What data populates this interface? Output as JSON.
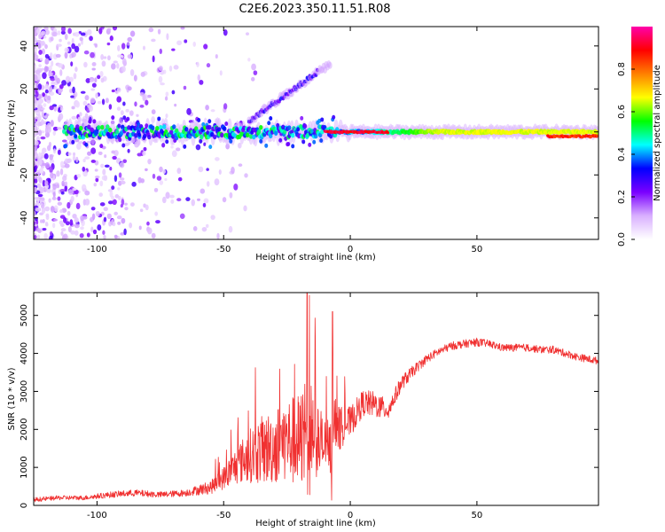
{
  "chart_data": [
    {
      "type": "heatmap",
      "title": "C2E6.2023.350.11.51.R08",
      "xlabel": "Height of straight line (km)",
      "ylabel": "Frequency (Hz)",
      "xlim": [
        -125,
        98
      ],
      "ylim": [
        -50,
        49
      ],
      "x_ticks": [
        -100,
        -50,
        0,
        50
      ],
      "x_tick_labels": [
        "-100",
        "-50",
        "0",
        "50"
      ],
      "y_ticks": [
        40,
        20,
        0,
        -20,
        -40
      ],
      "y_tick_labels": [
        "40",
        "20",
        "0",
        "-20",
        "-40"
      ],
      "colorbar": {
        "label": "Normalized spectral amplitude",
        "range": [
          0,
          1
        ],
        "ticks": [
          0.0,
          0.2,
          0.4,
          0.6,
          0.8
        ],
        "tick_labels": [
          "0.0",
          "0.2",
          "0.4",
          "0.6",
          "0.8"
        ],
        "colormap_stops": [
          "#ffffff",
          "#d9b0ff",
          "#7a00ff",
          "#0000ff",
          "#00ffff",
          "#00ff00",
          "#ffff00",
          "#ff8000",
          "#ff0000",
          "#ff00aa"
        ]
      },
      "features": [
        {
          "name": "main-band",
          "freq_hz": 0,
          "x_range": [
            -113,
            98
          ],
          "amplitude": 0.55
        },
        {
          "name": "upper-branch",
          "freq_start_hz": 5,
          "freq_end_hz": 32,
          "x_range": [
            -40,
            -8
          ],
          "amplitude": 0.3
        },
        {
          "name": "peak-segment",
          "freq_hz": 0,
          "x_range": [
            -10,
            15
          ],
          "amplitude": 0.95
        },
        {
          "name": "tail-segment",
          "freq_hz": -2,
          "x_range": [
            78,
            98
          ],
          "amplitude": 0.9
        }
      ]
    },
    {
      "type": "line",
      "xlabel": "Height of straight line (km)",
      "ylabel": "SNR (10 * v/v)",
      "xlim": [
        -125,
        98
      ],
      "ylim": [
        0,
        5600
      ],
      "x_ticks": [
        -100,
        -50,
        0,
        50
      ],
      "x_tick_labels": [
        "-100",
        "-50",
        "0",
        "50"
      ],
      "y_ticks": [
        0,
        1000,
        2000,
        3000,
        4000,
        5000
      ],
      "y_tick_labels": [
        "0",
        "1000",
        "2000",
        "3000",
        "4000",
        "5000"
      ],
      "series": [
        {
          "name": "SNR",
          "color": "#f03030",
          "x": [
            -125,
            -115,
            -105,
            -95,
            -85,
            -75,
            -65,
            -55,
            -50,
            -45,
            -40,
            -35,
            -30,
            -25,
            -20,
            -17,
            -15,
            -10,
            -7,
            -5,
            0,
            5,
            10,
            15,
            20,
            25,
            30,
            35,
            40,
            45,
            50,
            55,
            60,
            65,
            70,
            75,
            80,
            85,
            90,
            98
          ],
          "values": [
            150,
            200,
            200,
            280,
            330,
            280,
            330,
            480,
            720,
            1050,
            1300,
            1450,
            1550,
            1750,
            1650,
            2300,
            1900,
            1500,
            1500,
            2000,
            2200,
            2700,
            2650,
            2500,
            3200,
            3550,
            3850,
            4050,
            4200,
            4250,
            4300,
            4250,
            4150,
            4150,
            4150,
            4100,
            4100,
            4000,
            3900,
            3800
          ],
          "noise": [
            60,
            60,
            60,
            80,
            90,
            80,
            90,
            180,
            300,
            500,
            700,
            900,
            1000,
            1100,
            1300,
            1500,
            1200,
            800,
            700,
            600,
            400,
            350,
            350,
            250,
            200,
            150,
            120,
            110,
            110,
            110,
            110,
            100,
            100,
            100,
            100,
            100,
            100,
            100,
            100,
            100
          ]
        }
      ],
      "annotations": [
        {
          "x": -17,
          "y": 5600,
          "label": ""
        },
        {
          "x": -7,
          "y": 5100,
          "label": ""
        }
      ]
    }
  ]
}
